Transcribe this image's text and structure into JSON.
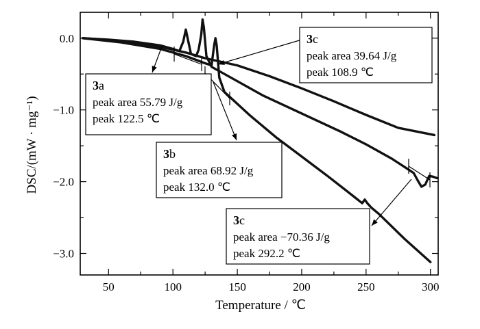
{
  "chart_data": {
    "type": "line",
    "xlabel": "Temperature / ℃",
    "ylabel": "DSC/(mW · mg⁻¹)",
    "xlim": [
      28,
      306
    ],
    "ylim": [
      -3.3,
      0.36
    ],
    "x_ticks": [
      "50",
      "100",
      "150",
      "200",
      "250",
      "300"
    ],
    "y_ticks": [
      "0.0",
      "−1.0",
      "−2.0",
      "−3.0"
    ],
    "x_tick_values": [
      50,
      100,
      150,
      200,
      250,
      300
    ],
    "y_tick_values": [
      0,
      -1,
      -2,
      -3
    ],
    "series": [
      {
        "points": [
          [
            30,
            0
          ],
          [
            50,
            -0.02
          ],
          [
            70,
            -0.05
          ],
          [
            90,
            -0.1
          ],
          [
            100,
            -0.15
          ],
          [
            105,
            -0.18
          ],
          [
            108,
            -0.05
          ],
          [
            110,
            0.12
          ],
          [
            112,
            -0.05
          ],
          [
            114,
            -0.22
          ],
          [
            118,
            -0.25
          ],
          [
            120,
            -0.16
          ],
          [
            122,
            0.05
          ],
          [
            123,
            0.26
          ],
          [
            124,
            0.15
          ],
          [
            126,
            -0.25
          ],
          [
            130,
            -0.4
          ],
          [
            150,
            -0.6
          ],
          [
            170,
            -0.8
          ],
          [
            200,
            -1.05
          ],
          [
            230,
            -1.3
          ],
          [
            250,
            -1.48
          ],
          [
            270,
            -1.68
          ],
          [
            282,
            -1.82
          ],
          [
            287,
            -1.88
          ],
          [
            290,
            -1.98
          ],
          [
            293,
            -2.07
          ],
          [
            296,
            -2.04
          ],
          [
            299,
            -1.92
          ],
          [
            302,
            -1.93
          ],
          [
            305,
            -1.95
          ]
        ]
      },
      {
        "points": [
          [
            30,
            0
          ],
          [
            60,
            -0.04
          ],
          [
            90,
            -0.12
          ],
          [
            110,
            -0.2
          ],
          [
            125,
            -0.28
          ],
          [
            150,
            -0.38
          ],
          [
            175,
            -0.53
          ],
          [
            200,
            -0.7
          ],
          [
            225,
            -0.88
          ],
          [
            250,
            -1.07
          ],
          [
            275,
            -1.25
          ],
          [
            303,
            -1.35
          ]
        ]
      },
      {
        "points": [
          [
            30,
            0
          ],
          [
            60,
            -0.06
          ],
          [
            90,
            -0.15
          ],
          [
            110,
            -0.25
          ],
          [
            125,
            -0.35
          ],
          [
            130,
            -0.38
          ],
          [
            132,
            -0.1
          ],
          [
            133,
            0.0
          ],
          [
            134,
            -0.1
          ],
          [
            136,
            -0.55
          ],
          [
            140,
            -0.75
          ],
          [
            160,
            -1.08
          ],
          [
            180,
            -1.38
          ],
          [
            200,
            -1.65
          ],
          [
            220,
            -1.92
          ],
          [
            240,
            -2.2
          ],
          [
            247,
            -2.3
          ],
          [
            249,
            -2.25
          ],
          [
            251,
            -2.3
          ],
          [
            254,
            -2.36
          ],
          [
            260,
            -2.45
          ],
          [
            280,
            -2.8
          ],
          [
            300,
            -3.12
          ]
        ]
      }
    ],
    "annotations": [
      {
        "head": "3",
        "sub": "a",
        "lines": [
          "peak area 55.79 J/g",
          "peak 122.5 ℃"
        ]
      },
      {
        "head": "3",
        "sub": "b",
        "lines": [
          "peak area 68.92 J/g",
          "peak 132.0 ℃"
        ]
      },
      {
        "head": "3",
        "sub": "c",
        "lines": [
          "peak area 39.64 J/g",
          "peak 108.9 ℃"
        ]
      },
      {
        "head": "3",
        "sub": "c",
        "lines": [
          "peak area −70.36 J/g",
          "peak 292.2 ℃"
        ]
      }
    ]
  }
}
